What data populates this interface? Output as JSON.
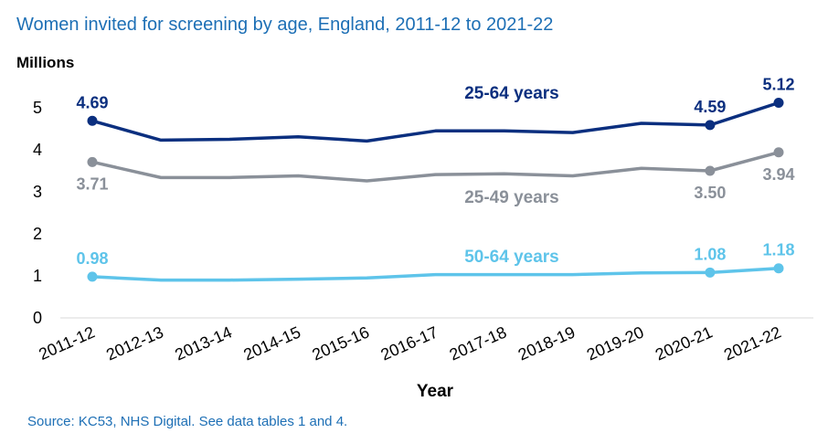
{
  "title": "Women invited for screening by age, England,  2011-12 to 2021-22",
  "source": "Source: KC53, NHS Digital. See data tables 1 and 4.",
  "chart_data": {
    "type": "line",
    "title": "Women invited for screening by age, England,  2011-12 to 2021-22",
    "units_label": "Millions",
    "xlabel": "Year",
    "ylabel": "",
    "ylim": [
      0,
      5.5
    ],
    "yticks": [
      "0",
      "1",
      "2",
      "3",
      "4",
      "5"
    ],
    "grid": false,
    "legend": "none",
    "categories": [
      "2011-12",
      "2012-13",
      "2013-14",
      "2014-15",
      "2015-16",
      "2016-17",
      "2017-18",
      "2018-19",
      "2019-20",
      "2020-21",
      "2021-22"
    ],
    "series": [
      {
        "name": "25-64 years",
        "color": "#0b2f7f",
        "values": [
          4.69,
          4.23,
          4.25,
          4.31,
          4.21,
          4.45,
          4.45,
          4.41,
          4.63,
          4.59,
          5.12
        ],
        "labels": [
          {
            "index": 0,
            "text": "4.69",
            "pos": "above"
          },
          {
            "index": 9,
            "text": "4.59",
            "pos": "above"
          },
          {
            "index": 10,
            "text": "5.12",
            "pos": "above"
          }
        ]
      },
      {
        "name": "25-49 years",
        "color": "#8a9099",
        "values": [
          3.71,
          3.34,
          3.34,
          3.38,
          3.26,
          3.41,
          3.43,
          3.38,
          3.56,
          3.5,
          3.94
        ],
        "labels": [
          {
            "index": 0,
            "text": "3.71",
            "pos": "below"
          },
          {
            "index": 9,
            "text": "3.50",
            "pos": "below"
          },
          {
            "index": 10,
            "text": "3.94",
            "pos": "below"
          }
        ]
      },
      {
        "name": "50-64 years",
        "color": "#5ec4ea",
        "values": [
          0.98,
          0.9,
          0.9,
          0.92,
          0.95,
          1.03,
          1.03,
          1.03,
          1.07,
          1.08,
          1.18
        ],
        "labels": [
          {
            "index": 0,
            "text": "0.98",
            "pos": "above"
          },
          {
            "index": 9,
            "text": "1.08",
            "pos": "above"
          },
          {
            "index": 10,
            "text": "1.18",
            "pos": "above"
          }
        ]
      }
    ]
  }
}
